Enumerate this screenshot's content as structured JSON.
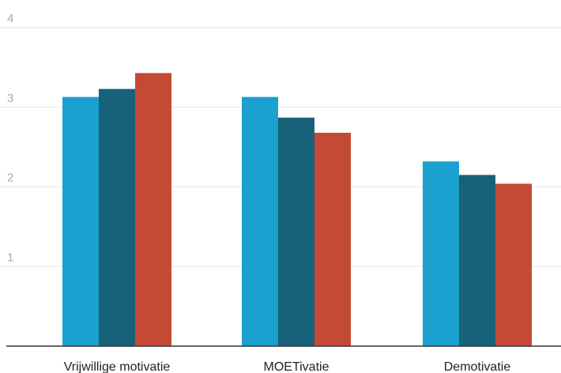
{
  "chart_data": {
    "type": "bar",
    "categories": [
      "Vrijwillige motivatie",
      "MOETivatie",
      "Demotivatie"
    ],
    "series": [
      {
        "values": [
          3.13,
          3.13,
          2.32
        ],
        "color": "#1aa1cf"
      },
      {
        "values": [
          3.23,
          2.87,
          2.15
        ],
        "color": "#176179"
      },
      {
        "values": [
          3.43,
          2.68,
          2.04
        ],
        "color": "#c44a36"
      }
    ],
    "yticks": [
      "1",
      "2",
      "3",
      "4"
    ],
    "ylim": [
      0,
      4
    ],
    "grid": true,
    "legend": "none",
    "title": "",
    "xlabel": "",
    "ylabel": ""
  }
}
